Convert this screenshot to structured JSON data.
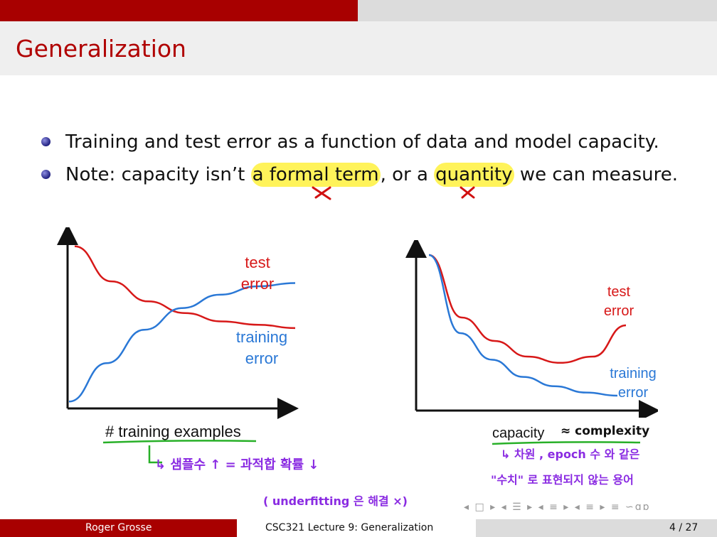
{
  "slide": {
    "title": "Generalization",
    "bullets": [
      {
        "pre": "Training and test error as a function of data and model capacity."
      },
      {
        "pre": "Note:  capacity isn’t ",
        "hl1": "a formal term",
        "mid": ", or a ",
        "hl2": "quantity",
        "post": " we can measure."
      }
    ]
  },
  "chart_data": [
    {
      "type": "line",
      "xlabel": "# training examples",
      "ylabel": "",
      "series": [
        {
          "name": "test error",
          "color": "#d71818",
          "values": [
            0.95,
            0.74,
            0.62,
            0.55,
            0.5,
            0.48,
            0.46
          ]
        },
        {
          "name": "training error",
          "color": "#2a78d6",
          "values": [
            0.02,
            0.25,
            0.45,
            0.58,
            0.66,
            0.71,
            0.73
          ]
        }
      ],
      "x": [
        0,
        1,
        2,
        3,
        4,
        5,
        6
      ]
    },
    {
      "type": "line",
      "xlabel": "capacity",
      "ylabel": "",
      "series": [
        {
          "name": "test error",
          "color": "#d71818",
          "values": [
            0.95,
            0.55,
            0.4,
            0.3,
            0.26,
            0.3,
            0.5
          ]
        },
        {
          "name": "training error",
          "color": "#2a78d6",
          "values": [
            0.95,
            0.45,
            0.28,
            0.17,
            0.11,
            0.07,
            0.05
          ]
        }
      ],
      "x": [
        0,
        1,
        2,
        3,
        4,
        5,
        6
      ]
    }
  ],
  "annotations": {
    "complexity": "≈ complexity",
    "sub_left": "↳  샘플수 ↑ = 과적합 확률 ↓",
    "sub_left2": "( underfitting 은 해결 ×)",
    "sub_right": "↳ 차원 , epoch 수  와 같은",
    "sub_right2": "\"수치\" 로 표현되지 않는 용어"
  },
  "footer": {
    "author": "Roger Grosse",
    "lecture": "CSC321 Lecture 9: Generalization",
    "page": "4 / 27"
  },
  "nav": "◂ □ ▸ ◂ ☰ ▸ ◂ ≡ ▸ ◂ ≡ ▸   ≡   ∽ɑɒ"
}
